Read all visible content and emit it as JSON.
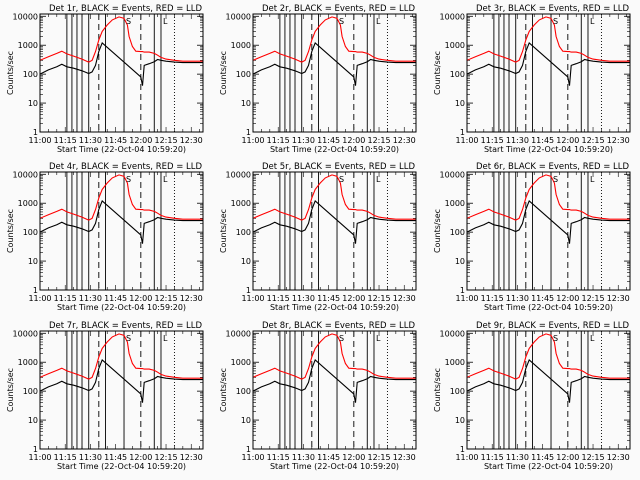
{
  "chart_data": {
    "type": "line",
    "grid": false,
    "y_scale": "log",
    "ylim": [
      1,
      12000
    ],
    "xlim": [
      "11:00",
      "12:37"
    ],
    "ylabel": "Counts/sec",
    "xlabel": "Start Time (22-Oct-04 10:59:20)",
    "x_ticks": [
      "11:00",
      "11:15",
      "11:30",
      "11:45",
      "12:00",
      "12:15",
      "12:30"
    ],
    "y_ticks": [
      "1",
      "10",
      "100",
      "1000",
      "10000"
    ],
    "colors": {
      "events": "#000000",
      "lld": "#ff0000"
    },
    "markers": [
      {
        "time": "11:16",
        "style": "solid",
        "label": ""
      },
      {
        "time": "11:19",
        "style": "solid",
        "label": ""
      },
      {
        "time": "11:22",
        "style": "solid",
        "label": ""
      },
      {
        "time": "11:25",
        "style": "solid",
        "label": ""
      },
      {
        "time": "11:29",
        "style": "solid",
        "label": ""
      },
      {
        "time": "11:35",
        "style": "dashed",
        "label": ""
      },
      {
        "time": "11:39",
        "style": "solid",
        "label": ""
      },
      {
        "time": "11:50",
        "style": "solid",
        "label": "S"
      },
      {
        "time": "12:00",
        "style": "dashed",
        "label": ""
      },
      {
        "time": "12:08",
        "style": "solid",
        "label": ""
      },
      {
        "time": "12:12",
        "style": "solid",
        "label": "L"
      },
      {
        "time": "12:20",
        "style": "dotted",
        "label": ""
      }
    ],
    "series": [
      {
        "color": "red",
        "x": [
          "11:00",
          "11:05",
          "11:10",
          "11:13",
          "11:16",
          "11:20",
          "11:25",
          "11:29",
          "11:31",
          "11:33",
          "11:35",
          "11:37",
          "11:40",
          "11:43",
          "11:47",
          "11:50",
          "11:52",
          "11:53",
          "11:55",
          "11:57",
          "12:00",
          "12:01",
          "12:02",
          "12:05",
          "12:08",
          "12:10",
          "12:12",
          "12:15",
          "12:20",
          "12:25",
          "12:30",
          "12:37"
        ],
        "values": [
          300,
          400,
          520,
          620,
          500,
          420,
          330,
          260,
          300,
          600,
          1500,
          3000,
          5000,
          7500,
          9500,
          8500,
          5000,
          2000,
          900,
          620,
          600,
          600,
          580,
          580,
          520,
          450,
          380,
          330,
          300,
          280,
          280,
          280
        ]
      },
      {
        "color": "black",
        "x": [
          "11:00",
          "11:05",
          "11:10",
          "11:13",
          "11:16",
          "11:20",
          "11:25",
          "11:29",
          "11:31",
          "11:33",
          "11:35",
          "11:37",
          "12:00",
          "12:01",
          "12:02",
          "12:05",
          "12:08",
          "12:10",
          "12:12",
          "12:15",
          "12:20",
          "12:25",
          "12:30",
          "12:37"
        ],
        "values": [
          100,
          140,
          180,
          220,
          180,
          160,
          130,
          105,
          120,
          200,
          600,
          1200,
          80,
          40,
          200,
          230,
          270,
          320,
          300,
          280,
          260,
          250,
          250,
          250
        ]
      }
    ],
    "panels": [
      {
        "title": "Det 1r, BLACK = Events, RED = LLD"
      },
      {
        "title": "Det 2r, BLACK = Events, RED = LLD"
      },
      {
        "title": "Det 3r, BLACK = Events, RED = LLD"
      },
      {
        "title": "Det 4r, BLACK = Events, RED = LLD"
      },
      {
        "title": "Det 5r, BLACK = Events, RED = LLD"
      },
      {
        "title": "Det 6r, BLACK = Events, RED = LLD"
      },
      {
        "title": "Det 7r, BLACK = Events, RED = LLD"
      },
      {
        "title": "Det 8r, BLACK = Events, RED = LLD"
      },
      {
        "title": "Det 9r, BLACK = Events, RED = LLD"
      }
    ]
  }
}
